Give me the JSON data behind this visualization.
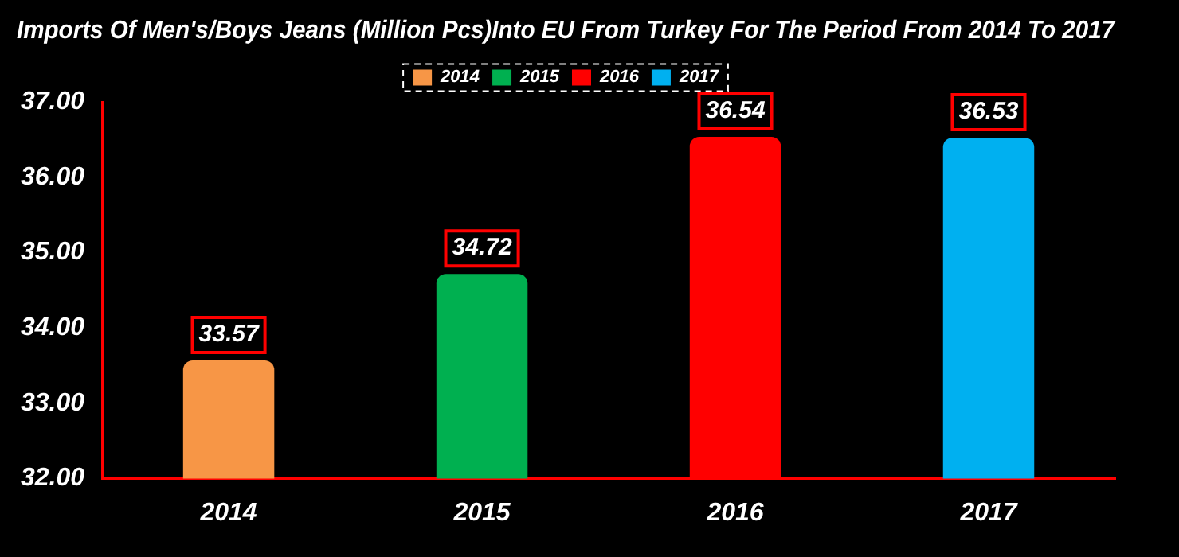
{
  "chart_data": {
    "type": "bar",
    "title": "Imports Of Men's/Boys Jeans (Million Pcs)Into EU From Turkey For The Period From 2014 To 2017",
    "categories": [
      "2014",
      "2015",
      "2016",
      "2017"
    ],
    "series": [
      {
        "name": "2014",
        "color": "#f79646",
        "values": [
          33.57,
          null,
          null,
          null
        ]
      },
      {
        "name": "2015",
        "color": "#00b050",
        "values": [
          null,
          34.72,
          null,
          null
        ]
      },
      {
        "name": "2016",
        "color": "#ff0000",
        "values": [
          null,
          null,
          36.54,
          null
        ]
      },
      {
        "name": "2017",
        "color": "#00b0f0",
        "values": [
          null,
          null,
          null,
          36.53
        ]
      }
    ],
    "ylim": [
      32,
      37
    ],
    "yticks": [
      {
        "value": 32,
        "label": "32.00"
      },
      {
        "value": 33,
        "label": "33.00"
      },
      {
        "value": 34,
        "label": "34.00"
      },
      {
        "value": 35,
        "label": "35.00"
      },
      {
        "value": 36,
        "label": "36.00"
      },
      {
        "value": 37,
        "label": "37.00"
      }
    ],
    "grid": false,
    "legend": "top",
    "data_labels": true
  }
}
